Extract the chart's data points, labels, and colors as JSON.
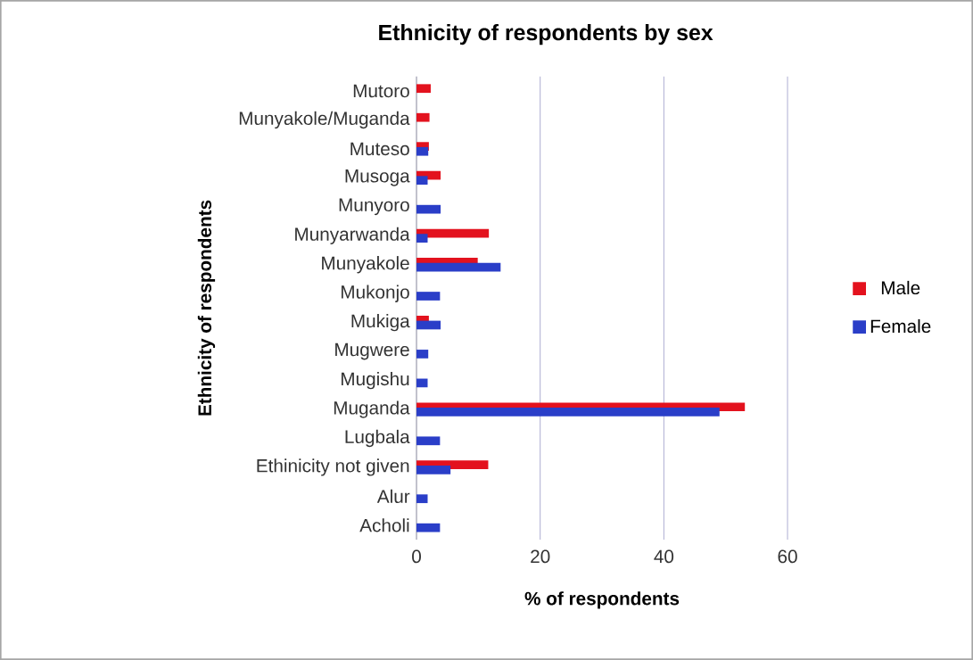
{
  "chart_data": {
    "type": "bar",
    "orientation": "horizontal",
    "title": "Ethnicity of respondents by sex",
    "xlabel": "% of respondents",
    "ylabel": "Ethnicity of respondents",
    "categories": [
      "Mutoro",
      "Munyakole/Muganda",
      "Muteso",
      "Musoga",
      "Munyoro",
      "Munyarwanda",
      "Munyakole",
      "Mukonjo",
      "Mukiga",
      "Mugwere",
      "Mugishu",
      "Muganda",
      "Lugbala",
      "Ethinicity not given",
      "Alur",
      "Acholi"
    ],
    "series": [
      {
        "name": "Male",
        "color": "#e3121e",
        "values": [
          2.3,
          2.1,
          2.0,
          3.9,
          null,
          11.7,
          9.9,
          null,
          2.0,
          null,
          null,
          53.1,
          null,
          11.6,
          null,
          null
        ]
      },
      {
        "name": "Female",
        "color": "#2a3ec8",
        "values": [
          null,
          null,
          1.9,
          1.8,
          3.9,
          1.8,
          13.6,
          3.8,
          3.9,
          1.9,
          1.8,
          49.0,
          3.8,
          5.5,
          1.8,
          3.8
        ]
      }
    ],
    "xlim": [
      0,
      60
    ],
    "xticks": [
      0,
      20,
      40,
      60
    ],
    "grid": "x",
    "legend": "right"
  }
}
